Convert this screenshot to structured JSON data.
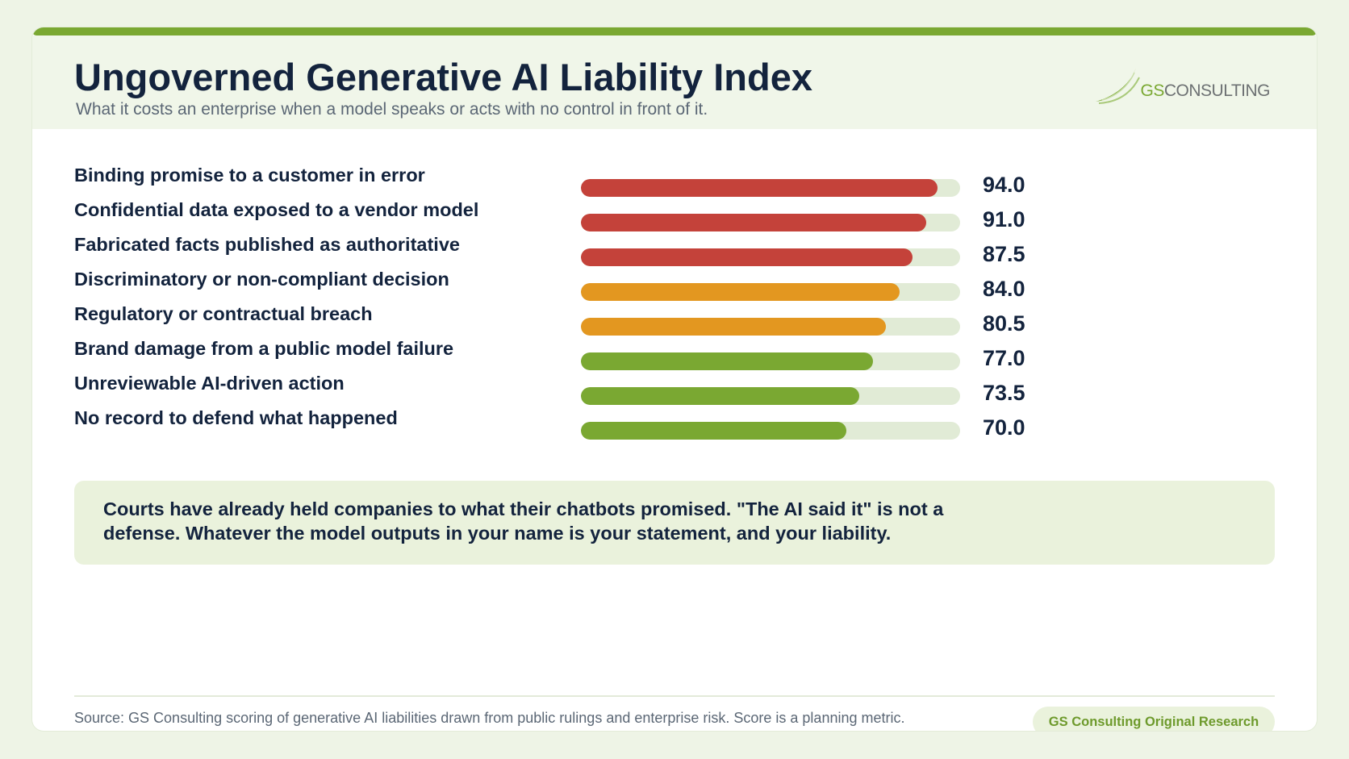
{
  "header": {
    "title": "Ungoverned Generative AI Liability Index",
    "subtitle": "What it costs an enterprise when a model speaks or acts with no control in front of it."
  },
  "logo": {
    "brand_prefix": "GS",
    "brand_suffix": "CONSULTING",
    "icon": "swoosh-logo-icon",
    "color": "#7aa832"
  },
  "chart_data": {
    "type": "bar",
    "orientation": "horizontal",
    "title": "Ungoverned Generative AI Liability Index",
    "xlim": [
      0,
      100
    ],
    "grid": false,
    "legend": "none",
    "categories": [
      "Binding promise to a customer in error",
      "Confidential data exposed to a vendor model",
      "Fabricated facts published as authoritative",
      "Discriminatory or non-compliant decision",
      "Regulatory or contractual breach",
      "Brand damage from a public model failure",
      "Unreviewable AI-driven action",
      "No record to defend what happened"
    ],
    "values": [
      94.0,
      91.0,
      87.5,
      84.0,
      80.5,
      77.0,
      73.5,
      70.0
    ],
    "value_labels": [
      "94.0",
      "91.0",
      "87.5",
      "84.0",
      "80.5",
      "77.0",
      "73.5",
      "70.0"
    ],
    "bar_colors": [
      "#c4423a",
      "#c4423a",
      "#c4423a",
      "#e39720",
      "#e39720",
      "#7aa832",
      "#7aa832",
      "#7aa832"
    ],
    "track_color": "#e1ebd6"
  },
  "callout": {
    "text": "Courts have already held companies to what their chatbots promised. \"The AI said it\" is not a defense. Whatever the model outputs in your name is your statement, and your liability."
  },
  "footer": {
    "source": "Source: GS Consulting scoring of generative AI liabilities drawn from public rulings and enterprise risk. Score is a planning metric.",
    "badge": "GS Consulting Original Research"
  }
}
